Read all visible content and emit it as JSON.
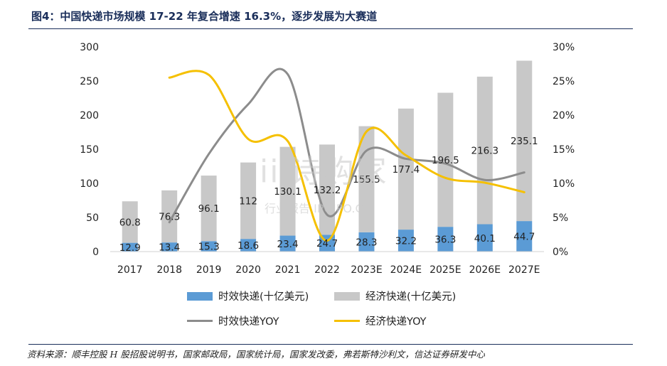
{
  "title": "图4：中国快递市场规模 17-22 年复合增速 16.3%，逐步发展为大赛道",
  "source": "资料来源：顺丰控股 H 股招股说明书，国家邮政局，国家统计局，国家发改委，弗若斯特沙利文，信达证券研发中心",
  "watermark": {
    "main": "iii诗购家",
    "sub": "行业报告 IPOIPO.CN"
  },
  "colors": {
    "blue": "#5b9bd5",
    "gray_bar": "#c8c8c8",
    "gray_line": "#8c8c8c",
    "gold": "#f5c000"
  },
  "chart_data": {
    "type": "bar",
    "categories": [
      "2017",
      "2018",
      "2019",
      "2020",
      "2021",
      "2022",
      "2023E",
      "2024E",
      "2025E",
      "2026E",
      "2027E"
    ],
    "stacked": true,
    "series": [
      {
        "name": "时效快递(十亿美元)",
        "type": "bar",
        "axis": "left",
        "values": [
          12.9,
          13.4,
          15.3,
          18.6,
          23.4,
          24.7,
          28.3,
          32.2,
          36.3,
          40.1,
          44.7
        ]
      },
      {
        "name": "经济快递(十亿美元)",
        "type": "bar",
        "axis": "left",
        "values": [
          60.8,
          76.3,
          96.1,
          112,
          130.1,
          132.2,
          155.5,
          177.4,
          196.5,
          216.3,
          235.1
        ]
      },
      {
        "name": "时效快递YOY",
        "type": "line",
        "axis": "right",
        "values": [
          null,
          4.3,
          14.3,
          21.6,
          26.0,
          5.4,
          14.8,
          13.6,
          12.9,
          10.5,
          11.6
        ]
      },
      {
        "name": "经济快递YOY",
        "type": "line",
        "axis": "right",
        "values": [
          null,
          25.5,
          25.9,
          16.5,
          16.2,
          1.6,
          17.6,
          14.1,
          10.8,
          10.1,
          8.7
        ]
      }
    ],
    "y_left": {
      "min": 0,
      "max": 300,
      "ticks": [
        "0",
        "50",
        "100",
        "150",
        "200",
        "250",
        "300"
      ]
    },
    "y_right": {
      "min": 0,
      "max": 30,
      "ticks": [
        "0%",
        "5%",
        "10%",
        "15%",
        "20%",
        "25%",
        "30%"
      ]
    },
    "grid": false,
    "legend_position": "bottom"
  }
}
